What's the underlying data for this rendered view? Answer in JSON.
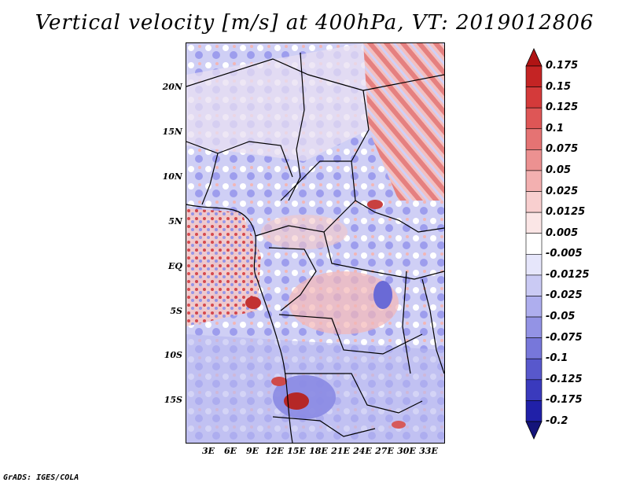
{
  "title": "Vertical velocity [m/s] at 400hPa, VT: 2019012806",
  "credit": "GrADS: IGES/COLA",
  "map": {
    "region": "Central Africa",
    "lon_range": [
      0,
      35
    ],
    "lat_range": [
      -20,
      24
    ],
    "lat_labels": [
      "20N",
      "15N",
      "10N",
      "5N",
      "EQ",
      "5S",
      "10S",
      "15S"
    ],
    "lon_labels": [
      "3E",
      "6E",
      "9E",
      "12E",
      "15E",
      "18E",
      "21E",
      "24E",
      "27E",
      "30E",
      "33E"
    ]
  },
  "colorbar": {
    "labels": [
      "0.175",
      "0.15",
      "0.125",
      "0.1",
      "0.075",
      "0.05",
      "0.025",
      "0.0125",
      "0.005",
      "-0.005",
      "-0.0125",
      "-0.025",
      "-0.05",
      "-0.075",
      "-0.1",
      "-0.125",
      "-0.175",
      "-0.2"
    ],
    "colors": [
      "#b01414",
      "#c42424",
      "#d43a3a",
      "#de5656",
      "#e57373",
      "#ec9191",
      "#f3b0b0",
      "#f8cfcf",
      "#fbe6e6",
      "#ffffff",
      "#e6e6fb",
      "#cacaf4",
      "#aeaeee",
      "#9393e5",
      "#7777da",
      "#5858cc",
      "#3a3abd",
      "#2020a8",
      "#14147a"
    ]
  }
}
